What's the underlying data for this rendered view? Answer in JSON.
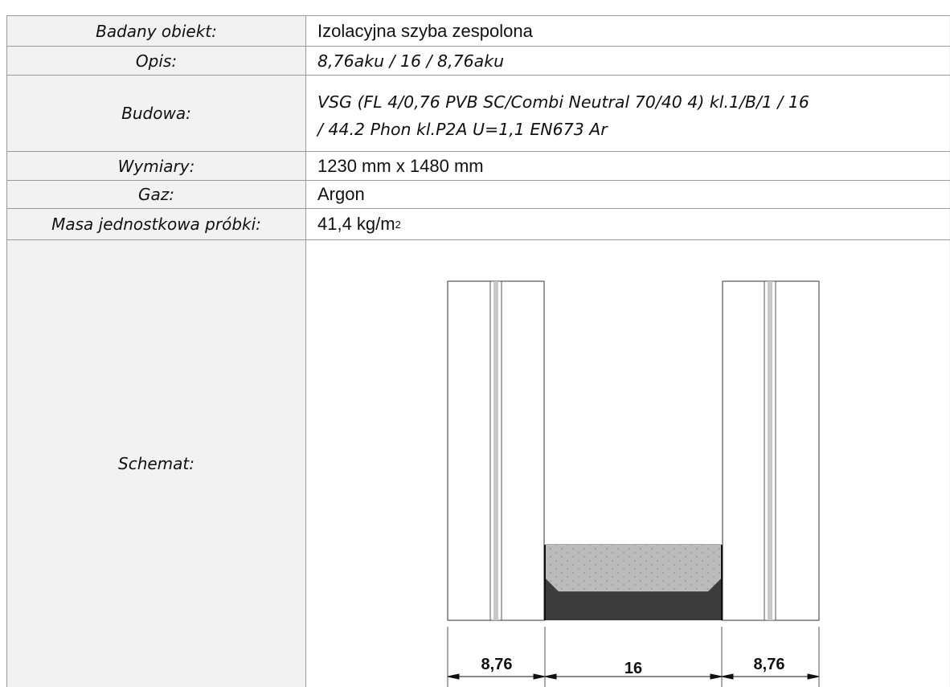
{
  "table": {
    "rows": [
      {
        "label": "Badany obiekt:",
        "value": "Izolacyjna szyba zespolona"
      },
      {
        "label": "Opis:",
        "value": "8,76aku / 16 / 8,76aku"
      },
      {
        "label": "Budowa:",
        "value_line1": "VSG (FL 4/0,76 PVB SC/Combi Neutral 70/40 4) kl.1/B/1 / 16",
        "value_line2": "/ 44.2 Phon kl.P2A U=1,1 EN673 Ar"
      },
      {
        "label": "Wymiary:",
        "value": "1230 mm x 1480 mm"
      },
      {
        "label": "Gaz:",
        "value": "Argon"
      },
      {
        "label": "Masa jednostkowa próbki:",
        "value_main": "41,4 kg/m",
        "value_sup": "2"
      },
      {
        "label": "Schemat:"
      }
    ]
  },
  "schematic": {
    "dimensions": [
      "8,76",
      "16",
      "8,76"
    ],
    "colors": {
      "glass_edge": "#555555",
      "interlayer": "#c8c8c8",
      "spacer_fill": "#ffffff",
      "sealant": "#3c3c3c"
    }
  }
}
